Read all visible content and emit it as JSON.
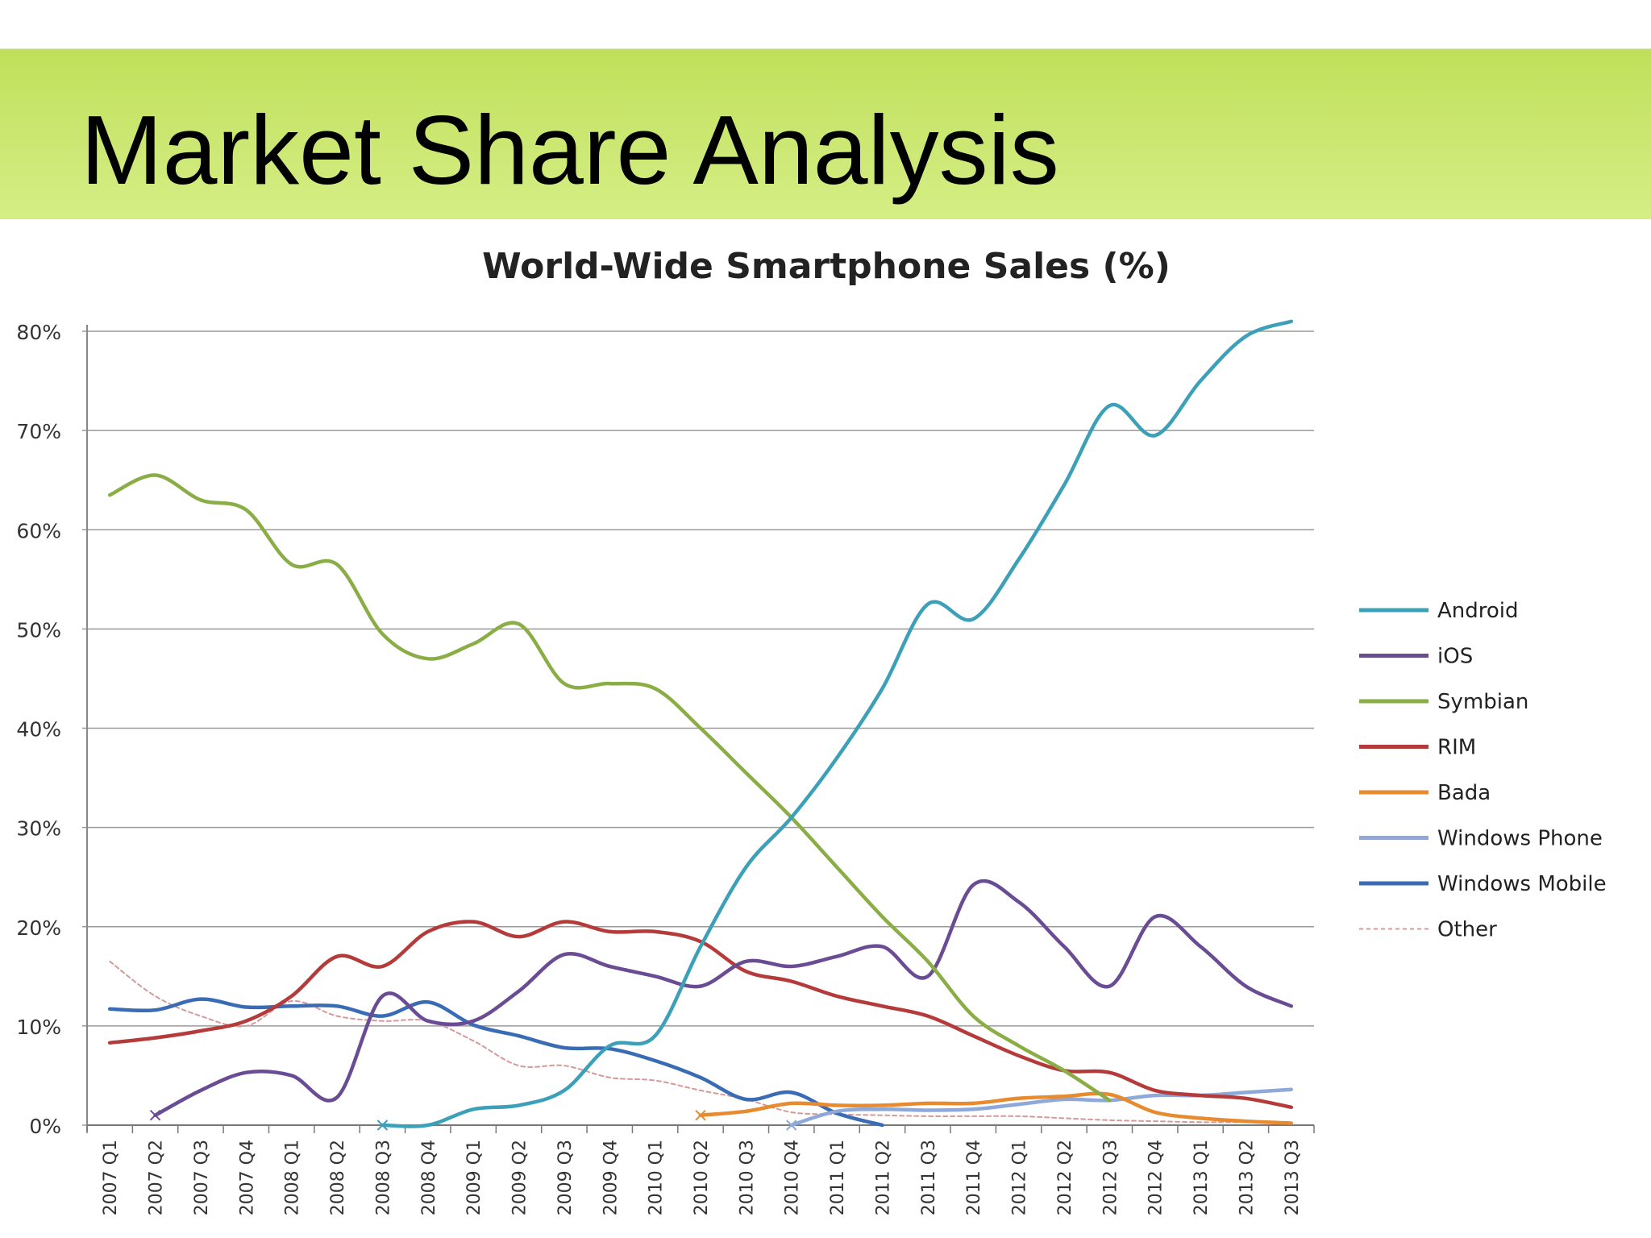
{
  "slide": {
    "title": "Market Share Analysis"
  },
  "chart_data": {
    "type": "line",
    "title": "World-Wide Smartphone Sales (%)",
    "xlabel": "",
    "ylabel": "",
    "ylim": [
      0,
      80
    ],
    "y_ticks": [
      0,
      10,
      20,
      30,
      40,
      50,
      60,
      70,
      80
    ],
    "y_tick_labels": [
      "0%",
      "10%",
      "20%",
      "30%",
      "40%",
      "50%",
      "60%",
      "70%",
      "80%"
    ],
    "grid": true,
    "legend_position": "right",
    "categories": [
      "2007 Q1",
      "2007 Q2",
      "2007 Q3",
      "2007 Q4",
      "2008 Q1",
      "2008 Q2",
      "2008 Q3",
      "2008 Q4",
      "2009 Q1",
      "2009 Q2",
      "2009 Q3",
      "2009 Q4",
      "2010 Q1",
      "2010 Q2",
      "2010 Q3",
      "2010 Q4",
      "2011 Q1",
      "2011 Q2",
      "2011 Q3",
      "2011 Q4",
      "2012 Q1",
      "2012 Q2",
      "2012 Q3",
      "2012 Q4",
      "2013 Q1",
      "2013 Q2",
      "2013 Q3"
    ],
    "series": [
      {
        "name": "Android",
        "color": "#3ca0b8",
        "dashed": false,
        "values": [
          null,
          null,
          null,
          null,
          null,
          null,
          0,
          0,
          1.6,
          2,
          3.5,
          8,
          9,
          18,
          26,
          31,
          37,
          44,
          52.5,
          51,
          57,
          64.5,
          72.5,
          69.5,
          75,
          79.5,
          81
        ]
      },
      {
        "name": "iOS",
        "color": "#6a4c94",
        "dashed": false,
        "values": [
          null,
          1,
          3.5,
          5.3,
          5,
          2.8,
          13,
          10.5,
          10.5,
          13.5,
          17.2,
          16,
          15,
          14,
          16.5,
          16,
          17,
          18,
          15,
          24.2,
          22.5,
          18,
          14,
          21,
          18,
          14,
          12
        ]
      },
      {
        "name": "Symbian",
        "color": "#8aad45",
        "dashed": false,
        "values": [
          63.5,
          65.5,
          63,
          62,
          56.5,
          56.5,
          49.5,
          47,
          48.5,
          50.5,
          44.5,
          44.5,
          44,
          40,
          35.5,
          31,
          26,
          21,
          16.5,
          11,
          8,
          5.5,
          2.5,
          null,
          null,
          null,
          null
        ]
      },
      {
        "name": "RIM",
        "color": "#b53a3a",
        "dashed": false,
        "values": [
          8.3,
          8.8,
          9.5,
          10.5,
          13,
          17,
          16,
          19.5,
          20.5,
          19,
          20.5,
          19.5,
          19.5,
          18.5,
          15.5,
          14.5,
          13,
          12,
          11,
          9,
          7,
          5.5,
          5.3,
          3.5,
          3,
          2.7,
          1.8
        ]
      },
      {
        "name": "Bada",
        "color": "#e88a2e",
        "dashed": false,
        "values": [
          null,
          null,
          null,
          null,
          null,
          null,
          null,
          null,
          null,
          null,
          null,
          null,
          null,
          1,
          1.4,
          2.2,
          2,
          2,
          2.2,
          2.2,
          2.7,
          2.9,
          3.1,
          1.3,
          0.7,
          0.4,
          0.2
        ]
      },
      {
        "name": "Windows Phone",
        "color": "#8fa8da",
        "dashed": false,
        "values": [
          null,
          null,
          null,
          null,
          null,
          null,
          null,
          null,
          null,
          null,
          null,
          null,
          null,
          null,
          null,
          0,
          1.4,
          1.6,
          1.5,
          1.6,
          2.1,
          2.6,
          2.5,
          3,
          3,
          3.3,
          3.6
        ]
      },
      {
        "name": "Windows Mobile",
        "color": "#3a6bb5",
        "dashed": false,
        "values": [
          11.7,
          11.6,
          12.7,
          11.9,
          12,
          12,
          11,
          12.4,
          10.1,
          9,
          7.8,
          7.7,
          6.5,
          4.8,
          2.6,
          3.3,
          1.2,
          0,
          null,
          null,
          null,
          null,
          null,
          null,
          null,
          null,
          null
        ]
      },
      {
        "name": "Other",
        "color": "#d49a9a",
        "dashed": true,
        "values": [
          16.5,
          13,
          11,
          10,
          12.5,
          11,
          10.5,
          10.5,
          8.5,
          6,
          6,
          4.8,
          4.5,
          3.5,
          2.6,
          1.3,
          1.1,
          1,
          0.9,
          0.9,
          0.9,
          0.7,
          0.5,
          0.4,
          0.3,
          0.3,
          0.3
        ]
      }
    ]
  }
}
